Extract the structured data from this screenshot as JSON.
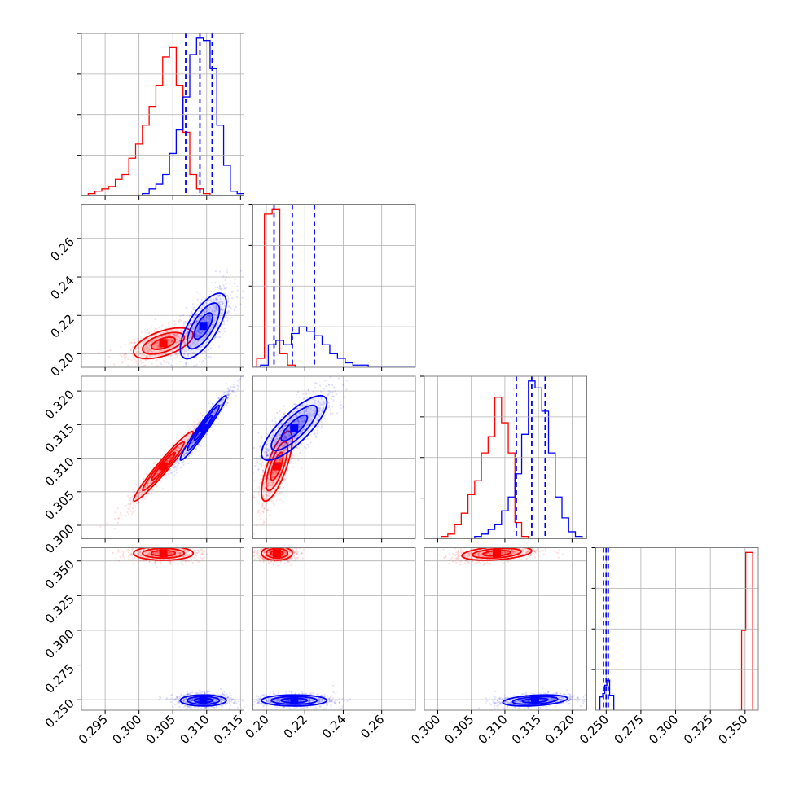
{
  "chart_data": {
    "type": "corner",
    "colors": {
      "red": "#ff0000",
      "blue": "#0000ff"
    },
    "grid": true,
    "parameters": [
      {
        "id": "p1",
        "range": [
          0.2915,
          0.3155
        ],
        "ticks": [
          0.295,
          0.3,
          0.305,
          0.31,
          0.315
        ],
        "tick_labels": [
          "0.295",
          "0.300",
          "0.305",
          "0.310",
          "0.315"
        ]
      },
      {
        "id": "p2",
        "range": [
          0.193,
          0.2775
        ],
        "ticks": [
          0.2,
          0.22,
          0.24,
          0.26
        ],
        "tick_labels": [
          "0.20",
          "0.22",
          "0.24",
          "0.26"
        ]
      },
      {
        "id": "p3",
        "range": [
          0.298,
          0.3222
        ],
        "ticks": [
          0.3,
          0.305,
          0.31,
          0.315,
          0.32
        ],
        "tick_labels": [
          "0.300",
          "0.305",
          "0.310",
          "0.315",
          "0.320"
        ]
      },
      {
        "id": "p4",
        "range": [
          0.2425,
          0.3595
        ],
        "ticks": [
          0.25,
          0.275,
          0.3,
          0.325,
          0.35
        ],
        "tick_labels": [
          "0.250",
          "0.275",
          "0.300",
          "0.325",
          "0.350"
        ]
      }
    ],
    "series": [
      {
        "color": "red",
        "center": [
          0.3036,
          0.2055,
          0.3088,
          0.3555
        ],
        "sigma": [
          0.0022,
          0.004,
          0.0026,
          0.0025
        ],
        "histograms": [
          {
            "edges": [
              0.2915,
              0.2925,
              0.2935,
              0.2945,
              0.2955,
              0.2965,
              0.2975,
              0.2985,
              0.2995,
              0.3005,
              0.3015,
              0.3025,
              0.3035,
              0.3045,
              0.3055,
              0.3065,
              0.3075,
              0.3085,
              0.3095,
              0.3105,
              0.3115,
              0.3125
            ],
            "counts": [
              0,
              1,
              2,
              3,
              4,
              7,
              9,
              16,
              22,
              30,
              38,
              47,
              59,
              63,
              47,
              27,
              9,
              3,
              1,
              0,
              0
            ]
          },
          {
            "edges": [
              0.195,
              0.199,
              0.203,
              0.207,
              0.211,
              0.215
            ],
            "counts": [
              4,
              68,
              70,
              6,
              1
            ]
          },
          {
            "edges": [
              0.3005,
              0.3015,
              0.3025,
              0.3035,
              0.3045,
              0.3055,
              0.3065,
              0.3075,
              0.3085,
              0.3095,
              0.3105,
              0.3115,
              0.3125,
              0.3135
            ],
            "counts": [
              1,
              2,
              6,
              11,
              19,
              25,
              37,
              44,
              61,
              50,
              37,
              7,
              1
            ]
          },
          {
            "edges": [
              0.345,
              0.3475,
              0.3505,
              0.3555
            ],
            "counts": [
              0,
              48,
              95
            ]
          }
        ]
      },
      {
        "color": "blue",
        "center": [
          0.3095,
          0.2145,
          0.3145,
          0.2495
        ],
        "sigma": [
          0.0017,
          0.0085,
          0.0024,
          0.002
        ],
        "quantiles": [
          [
            0.3069,
            0.309,
            0.3108
          ],
          [
            0.204,
            0.2135,
            0.225
          ],
          [
            0.3117,
            0.314,
            0.316
          ],
          [
            0.248,
            0.25,
            0.2515
          ]
        ],
        "histograms": [
          {
            "edges": [
              0.2985,
              0.2995,
              0.3005,
              0.3015,
              0.3025,
              0.3035,
              0.3045,
              0.3055,
              0.3065,
              0.3075,
              0.3085,
              0.3095,
              0.3105,
              0.3115,
              0.3125,
              0.3135,
              0.3145,
              0.3155
            ],
            "counts": [
              0,
              0,
              1,
              3,
              5,
              9,
              18,
              28,
              42,
              60,
              67,
              66,
              54,
              30,
              13,
              2,
              1
            ]
          },
          {
            "edges": [
              0.193,
              0.197,
              0.201,
              0.205,
              0.209,
              0.213,
              0.217,
              0.221,
              0.225,
              0.229,
              0.233,
              0.237,
              0.241,
              0.245,
              0.249,
              0.253,
              0.257,
              0.261,
              0.265,
              0.269,
              0.273,
              0.2775
            ],
            "counts": [
              0,
              1,
              10,
              12,
              10,
              15,
              18,
              16,
              14,
              10,
              6,
              4,
              2,
              1,
              1,
              0,
              0,
              0,
              0,
              0,
              0
            ]
          },
          {
            "edges": [
              0.3055,
              0.3065,
              0.3075,
              0.3085,
              0.3095,
              0.3105,
              0.3115,
              0.3125,
              0.3135,
              0.3145,
              0.3155,
              0.3165,
              0.3175,
              0.3185,
              0.3195,
              0.3205,
              0.3215
            ],
            "counts": [
              1,
              2,
              4,
              6,
              12,
              18,
              28,
              45,
              68,
              65,
              55,
              37,
              18,
              9,
              3,
              1
            ]
          },
          {
            "edges": [
              0.244,
              0.2455,
              0.2475,
              0.249,
              0.2505,
              0.2525,
              0.2555
            ],
            "counts": [
              0,
              8,
              10,
              15,
              18,
              9
            ]
          }
        ]
      }
    ]
  }
}
